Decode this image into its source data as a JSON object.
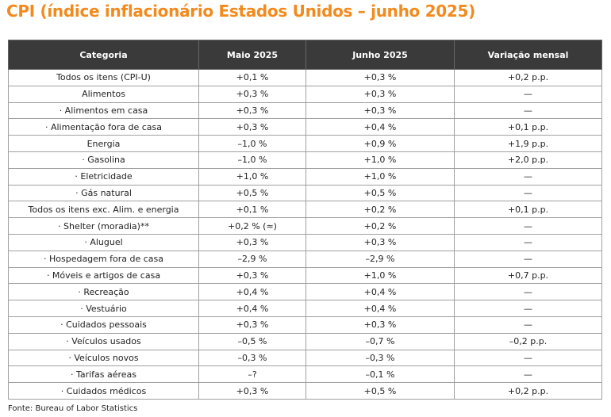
{
  "title": "CPI (índice inflacionário Estados Unidos – junho 2025)",
  "headers": [
    "Categoria",
    "Maio 2025",
    "Junho 2025",
    "Variação mensal"
  ],
  "rows": [
    [
      "Todos os itens (CPI-U)",
      "+0,1 %",
      "+0,3 %",
      "+0,2 p.p."
    ],
    [
      "Alimentos",
      "+0,3 %",
      "+0,3 %",
      "—"
    ],
    [
      "· Alimentos em casa",
      "+0,3 %",
      "+0,3 %",
      "—"
    ],
    [
      "· Alimentação fora de casa",
      "+0,3 %",
      "+0,4 %",
      "+0,1 p.p."
    ],
    [
      "Energia",
      "–1,0 %",
      "+0,9 %",
      "+1,9 p.p."
    ],
    [
      "· Gasolina",
      "–1,0 %",
      "+1,0 %",
      "+2,0 p.p."
    ],
    [
      "· Eletricidade",
      "+1,0 %",
      "+1,0 %",
      "—"
    ],
    [
      "· Gás natural",
      "+0,5 %",
      "+0,5 %",
      "—"
    ],
    [
      "Todos os itens exc. Alim. e energia",
      "+0,1 %",
      "+0,2 %",
      "+0,1 p.p."
    ],
    [
      "· Shelter (moradia)**",
      "+0,2 % (≈)",
      "+0,2 %",
      "—"
    ],
    [
      "· Aluguel",
      "+0,3 %",
      "+0,3 %",
      "—"
    ],
    [
      "· Hospedagem fora de casa",
      "–2,9 %",
      "–2,9 %",
      "—"
    ],
    [
      "· Móveis e artigos de casa",
      "+0,3 %",
      "+1,0 %",
      "+0,7 p.p."
    ],
    [
      "· Recreação",
      "+0,4 %",
      "+0,4 %",
      "—"
    ],
    [
      "· Vestuário",
      "+0,4 %",
      "+0,4 %",
      "—"
    ],
    [
      "· Cuidados pessoais",
      "+0,3 %",
      "+0,3 %",
      "—"
    ],
    [
      "· Veículos usados",
      "–0,5 %",
      "–0,7 %",
      "–0,2 p.p."
    ],
    [
      "· Veículos novos",
      "–0,3 %",
      "–0,3 %",
      "—"
    ],
    [
      "· Tarifas aéreas",
      "–?",
      "–0,1 %",
      "—"
    ],
    [
      "· Cuidados médicos",
      "+0,3 %",
      "+0,5 %",
      "+0,2 p.p."
    ]
  ],
  "source": "Fonte: Bureau of Labor Statistics",
  "colors": {
    "title": "#f28a1e",
    "header_bg": "#3a3a3a",
    "header_text": "#ffffff",
    "grid": "#a0a0a0"
  }
}
